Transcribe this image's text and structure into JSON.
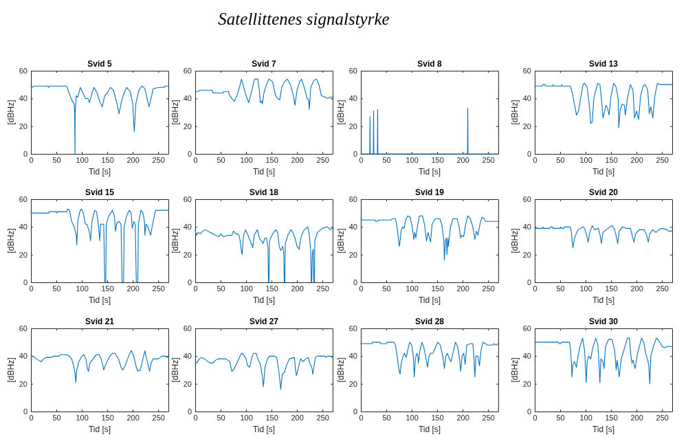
{
  "chart_data": [
    {
      "type": "other",
      "title": "Satellittenes signalstyrke"
    },
    {
      "type": "line",
      "title": "Svid 5",
      "xlabel": "Tid [s]",
      "ylabel": "[dBHz]",
      "color": "#0072bd",
      "xlim": [
        0,
        270
      ],
      "xticks": [
        0,
        50,
        100,
        150,
        200,
        250
      ],
      "ylim": [
        0,
        60
      ],
      "yticks": [
        0,
        20,
        40,
        60
      ],
      "x": [
        0,
        3,
        6,
        33,
        35,
        37,
        70,
        75,
        80,
        85,
        86,
        86.5,
        87,
        89,
        92,
        97,
        102,
        107,
        112,
        115,
        120,
        124,
        130,
        135,
        140,
        145,
        150,
        156,
        162,
        168,
        173,
        178,
        183,
        188,
        195,
        200,
        203,
        206,
        212,
        218,
        224,
        228,
        232,
        236,
        240,
        250,
        262,
        263,
        270
      ],
      "values": [
        49,
        48,
        49,
        49,
        48,
        49,
        49,
        44,
        39,
        36,
        30,
        0,
        30,
        42,
        41,
        48,
        44,
        40,
        40,
        37,
        44,
        48,
        44,
        38,
        34,
        42,
        44,
        48,
        46,
        38,
        29,
        38,
        44,
        48,
        45,
        36,
        16,
        36,
        46,
        49,
        47,
        40,
        34,
        40,
        47,
        48,
        48,
        49,
        49
      ]
    },
    {
      "type": "line",
      "title": "Svid 7",
      "xlabel": "Tid [s]",
      "ylabel": "[dBHz]",
      "color": "#0072bd",
      "xlim": [
        0,
        270
      ],
      "xticks": [
        0,
        50,
        100,
        150,
        200,
        250
      ],
      "ylim": [
        0,
        60
      ],
      "yticks": [
        0,
        20,
        40,
        60
      ],
      "x": [
        0,
        5,
        10,
        33,
        35,
        55,
        56,
        65,
        68,
        72,
        77,
        82,
        87,
        91,
        94,
        100,
        105,
        110,
        115,
        117,
        123,
        126,
        128,
        131,
        132,
        135,
        140,
        145,
        152,
        158,
        162,
        166,
        170,
        175,
        181,
        187,
        193,
        196,
        200,
        205,
        209,
        214,
        220,
        223,
        224,
        227,
        233,
        238,
        243,
        248,
        255,
        260,
        265,
        270
      ],
      "values": [
        45,
        45,
        46,
        46,
        44,
        44,
        45,
        45,
        42,
        40,
        38,
        42,
        48,
        54,
        50,
        42,
        37,
        44,
        52,
        54,
        54,
        46,
        37,
        38,
        36,
        44,
        50,
        54,
        52,
        42,
        40,
        39,
        48,
        52,
        54,
        50,
        42,
        35,
        46,
        52,
        54,
        48,
        40,
        39,
        32,
        48,
        53,
        54,
        50,
        42,
        41,
        40,
        41,
        41
      ]
    },
    {
      "type": "line",
      "title": "Svid 8",
      "xlabel": "Tid [s]",
      "ylabel": "[dBHz]",
      "color": "#0072bd",
      "xlim": [
        0,
        270
      ],
      "xticks": [
        0,
        50,
        100,
        150,
        200,
        250
      ],
      "ylim": [
        0,
        60
      ],
      "yticks": [
        0,
        20,
        40,
        60
      ],
      "x": [
        0,
        17.5,
        18,
        18.5,
        24.5,
        25,
        25.5,
        32.5,
        33,
        33.5,
        209.5,
        210,
        210.5,
        270
      ],
      "values": [
        0,
        0,
        27,
        0,
        0,
        31,
        0,
        0,
        32,
        0,
        0,
        33,
        0,
        0
      ]
    },
    {
      "type": "line",
      "title": "Svid 13",
      "xlabel": "Tid [s]",
      "ylabel": "[dBHz]",
      "color": "#0072bd",
      "xlim": [
        0,
        270
      ],
      "xticks": [
        0,
        50,
        100,
        150,
        200,
        250
      ],
      "ylim": [
        0,
        60
      ],
      "yticks": [
        0,
        20,
        40,
        60
      ],
      "x": [
        0,
        15,
        16,
        20,
        21,
        35,
        36,
        37,
        52,
        53,
        54,
        70,
        74,
        78,
        82,
        86,
        90,
        95,
        98,
        103,
        107,
        110,
        113,
        116,
        120,
        124,
        128,
        131,
        134,
        137,
        140,
        143,
        146,
        150,
        155,
        160,
        164,
        165,
        168,
        172,
        176,
        178,
        182,
        188,
        193,
        196,
        200,
        204,
        208,
        213,
        217,
        222,
        225,
        228,
        232,
        236,
        241,
        245,
        270
      ],
      "values": [
        49,
        49,
        50,
        50,
        49,
        49,
        50,
        49,
        49,
        50,
        49,
        49,
        44,
        36,
        28,
        31,
        40,
        50,
        51,
        48,
        36,
        22,
        23,
        40,
        46,
        51,
        50,
        40,
        26,
        30,
        35,
        33,
        28,
        42,
        51,
        48,
        40,
        19,
        32,
        36,
        35,
        28,
        40,
        50,
        46,
        26,
        31,
        25,
        42,
        49,
        50,
        46,
        29,
        34,
        26,
        42,
        51,
        50,
        50
      ]
    },
    {
      "type": "line",
      "title": "Svid 15",
      "xlabel": "Tid [s]",
      "ylabel": "[dBHz]",
      "color": "#0072bd",
      "xlim": [
        0,
        270
      ],
      "xticks": [
        0,
        50,
        100,
        150,
        200,
        250
      ],
      "ylim": [
        0,
        60
      ],
      "yticks": [
        0,
        20,
        40,
        60
      ],
      "x": [
        0,
        1,
        35,
        36,
        50,
        51,
        52,
        70,
        73,
        76,
        80,
        85,
        89,
        90,
        92,
        96,
        99,
        103,
        107,
        110,
        115,
        117,
        120,
        125,
        129,
        133,
        135,
        137,
        143,
        145,
        147,
        148,
        153,
        160,
        164,
        166,
        169,
        173,
        177,
        179,
        182,
        183,
        188,
        193,
        197,
        199,
        202,
        205,
        207,
        210,
        211,
        216,
        220,
        223,
        224,
        226,
        230,
        235,
        240,
        245,
        270
      ],
      "values": [
        51,
        50,
        50,
        51,
        51,
        50,
        51,
        51,
        53,
        52,
        44,
        40,
        34,
        27,
        44,
        51,
        53,
        50,
        42,
        42,
        36,
        30,
        44,
        52,
        51,
        40,
        30,
        42,
        42,
        0,
        0,
        42,
        48,
        52,
        48,
        37,
        43,
        44,
        42,
        0,
        0,
        40,
        48,
        52,
        50,
        39,
        44,
        42,
        0,
        0,
        42,
        52,
        50,
        44,
        34,
        42,
        40,
        34,
        44,
        52,
        52
      ]
    },
    {
      "type": "line",
      "title": "Svid 18",
      "xlabel": "Tid [s]",
      "ylabel": "[dBHz]",
      "color": "#0072bd",
      "xlim": [
        0,
        270
      ],
      "xticks": [
        0,
        50,
        100,
        150,
        200,
        250
      ],
      "ylim": [
        0,
        60
      ],
      "yticks": [
        0,
        20,
        40,
        60
      ],
      "x": [
        0,
        2,
        6,
        10,
        15,
        20,
        25,
        30,
        40,
        47,
        50,
        55,
        65,
        72,
        75,
        80,
        84,
        87,
        91,
        92,
        95,
        99,
        105,
        110,
        113,
        116,
        122,
        126,
        130,
        133,
        137,
        140,
        143,
        144,
        145,
        146,
        152,
        158,
        162,
        165,
        168,
        172,
        174,
        175,
        176,
        177,
        182,
        188,
        192,
        196,
        200,
        204,
        208,
        214,
        221,
        224,
        227,
        228,
        229,
        230,
        232,
        233,
        234,
        235,
        240,
        250,
        260,
        265,
        270
      ],
      "values": [
        38,
        34,
        36,
        35,
        37,
        38,
        37,
        36,
        34,
        33,
        35,
        33,
        34,
        34,
        37,
        35,
        35,
        33,
        22,
        20,
        34,
        38,
        33,
        28,
        25,
        34,
        38,
        32,
        30,
        28,
        32,
        32,
        25,
        0,
        0,
        30,
        35,
        38,
        36,
        26,
        23,
        26,
        21,
        0,
        0,
        28,
        34,
        38,
        36,
        32,
        26,
        24,
        33,
        38,
        40,
        35,
        22,
        0,
        0,
        20,
        24,
        0,
        0,
        30,
        36,
        39,
        40,
        38,
        39
      ]
    },
    {
      "type": "line",
      "title": "Svid 19",
      "xlabel": "Tid [s]",
      "ylabel": "[dBHz]",
      "color": "#0072bd",
      "xlim": [
        0,
        270
      ],
      "xticks": [
        0,
        50,
        100,
        150,
        200,
        250
      ],
      "ylim": [
        0,
        60
      ],
      "yticks": [
        0,
        20,
        40,
        60
      ],
      "x": [
        0,
        3,
        28,
        29,
        33,
        34,
        60,
        62,
        68,
        71,
        75,
        76,
        79,
        82,
        85,
        88,
        92,
        97,
        101,
        104,
        106,
        108,
        111,
        115,
        121,
        125,
        129,
        132,
        137,
        140,
        146,
        155,
        159,
        163,
        164,
        166,
        168,
        169,
        171,
        172,
        176,
        181,
        189,
        193,
        196,
        198,
        202,
        206,
        210,
        215,
        220,
        224,
        227,
        230,
        234,
        238,
        242,
        245,
        270
      ],
      "values": [
        46,
        45,
        45,
        44,
        44,
        45,
        45,
        46,
        46,
        40,
        28,
        26,
        37,
        40,
        39,
        45,
        48,
        47,
        40,
        31,
        36,
        32,
        40,
        48,
        48,
        42,
        30,
        36,
        29,
        42,
        46,
        46,
        42,
        30,
        16,
        30,
        32,
        20,
        32,
        26,
        40,
        46,
        46,
        40,
        32,
        34,
        33,
        42,
        48,
        46,
        40,
        31,
        37,
        34,
        42,
        47,
        46,
        44,
        44
      ]
    },
    {
      "type": "line",
      "title": "Svid 20",
      "xlabel": "Tid [s]",
      "ylabel": "[dBHz]",
      "color": "#0072bd",
      "xlim": [
        0,
        270
      ],
      "xticks": [
        0,
        50,
        100,
        150,
        200,
        250
      ],
      "ylim": [
        0,
        60
      ],
      "yticks": [
        0,
        20,
        40,
        60
      ],
      "x": [
        0,
        2,
        15,
        16,
        17,
        30,
        31,
        35,
        36,
        50,
        51,
        53,
        57,
        58,
        70,
        72,
        74,
        75,
        78,
        85,
        95,
        98,
        102,
        105,
        108,
        113,
        117,
        125,
        129,
        131,
        134,
        140,
        152,
        157,
        161,
        163,
        166,
        172,
        180,
        188,
        192,
        195,
        198,
        205,
        215,
        220,
        223,
        226,
        232,
        238,
        244,
        250,
        260,
        263,
        270
      ],
      "values": [
        40,
        39,
        39,
        40,
        39,
        39,
        40,
        40,
        39,
        39,
        40,
        39,
        39,
        40,
        40,
        36,
        28,
        25,
        32,
        38,
        40,
        39,
        34,
        29,
        36,
        41,
        38,
        39,
        33,
        28,
        36,
        38,
        41,
        38,
        32,
        28,
        37,
        40,
        39,
        39,
        33,
        29,
        35,
        38,
        38,
        34,
        29,
        35,
        38,
        36,
        38,
        39,
        38,
        37,
        37
      ]
    },
    {
      "type": "line",
      "title": "Svid 21",
      "xlabel": "Tid [s]",
      "ylabel": "[dBHz]",
      "color": "#0072bd",
      "xlim": [
        0,
        270
      ],
      "xticks": [
        0,
        50,
        100,
        150,
        200,
        250
      ],
      "ylim": [
        0,
        60
      ],
      "yticks": [
        0,
        20,
        40,
        60
      ],
      "x": [
        0,
        1,
        5,
        10,
        15,
        20,
        25,
        30,
        40,
        45,
        55,
        58,
        70,
        75,
        80,
        84,
        87,
        88,
        90,
        94,
        100,
        104,
        108,
        111,
        113,
        116,
        122,
        128,
        134,
        138,
        142,
        143,
        148,
        155,
        160,
        165,
        172,
        177,
        180,
        185,
        192,
        197,
        202,
        207,
        210,
        215,
        220,
        224,
        226,
        230,
        233,
        236,
        240,
        250,
        258,
        265,
        267,
        270
      ],
      "values": [
        38,
        40,
        40,
        38,
        37,
        36,
        38,
        39,
        39,
        40,
        40,
        41,
        41,
        40,
        38,
        33,
        27,
        21,
        30,
        36,
        40,
        41,
        38,
        31,
        29,
        35,
        38,
        41,
        41,
        38,
        32,
        30,
        35,
        40,
        42,
        42,
        38,
        32,
        30,
        33,
        40,
        44,
        40,
        32,
        29,
        30,
        38,
        44,
        40,
        34,
        29,
        35,
        38,
        38,
        40,
        40,
        39,
        40
      ]
    },
    {
      "type": "line",
      "title": "Svid 27",
      "xlabel": "Tid [s]",
      "ylabel": "[dBHz]",
      "color": "#0072bd",
      "xlim": [
        0,
        270
      ],
      "xticks": [
        0,
        50,
        100,
        150,
        200,
        250
      ],
      "ylim": [
        0,
        60
      ],
      "yticks": [
        0,
        20,
        40,
        60
      ],
      "x": [
        0,
        3,
        8,
        12,
        18,
        25,
        30,
        35,
        40,
        45,
        60,
        68,
        72,
        75,
        82,
        88,
        91,
        95,
        100,
        103,
        107,
        112,
        115,
        120,
        123,
        128,
        132,
        134,
        137,
        142,
        146,
        155,
        160,
        164,
        167,
        168,
        171,
        175,
        180,
        185,
        195,
        197,
        199,
        203,
        207,
        212,
        217,
        222,
        226,
        229,
        231,
        233,
        236,
        240,
        255,
        256,
        260,
        265,
        270
      ],
      "values": [
        35,
        35,
        38,
        39,
        38,
        36,
        35,
        35,
        37,
        38,
        38,
        36,
        29,
        30,
        35,
        40,
        42,
        41,
        38,
        33,
        32,
        40,
        42,
        42,
        38,
        34,
        25,
        18,
        32,
        38,
        40,
        40,
        39,
        30,
        20,
        16,
        27,
        28,
        34,
        38,
        39,
        30,
        26,
        32,
        38,
        36,
        38,
        39,
        34,
        32,
        27,
        32,
        39,
        40,
        40,
        39,
        40,
        40,
        39
      ]
    },
    {
      "type": "line",
      "title": "Svid 28",
      "xlabel": "Tid [s]",
      "ylabel": "[dBHz]",
      "color": "#0072bd",
      "xlim": [
        0,
        270
      ],
      "xticks": [
        0,
        50,
        100,
        150,
        200,
        250
      ],
      "ylim": [
        0,
        60
      ],
      "yticks": [
        0,
        20,
        40,
        60
      ],
      "x": [
        0,
        22,
        23,
        38,
        39,
        50,
        52,
        65,
        68,
        72,
        75,
        77,
        80,
        83,
        86,
        89,
        92,
        96,
        100,
        103,
        105,
        107,
        110,
        112,
        113,
        116,
        120,
        124,
        128,
        131,
        134,
        137,
        142,
        146,
        151,
        156,
        161,
        164,
        167,
        170,
        174,
        177,
        181,
        186,
        190,
        194,
        196,
        199,
        202,
        205,
        208,
        215,
        220,
        222,
        224,
        226,
        230,
        233,
        236,
        240,
        245,
        248,
        260,
        262,
        265,
        270
      ],
      "values": [
        49,
        49,
        50,
        50,
        49,
        49,
        50,
        50,
        48,
        38,
        30,
        27,
        36,
        40,
        42,
        39,
        44,
        50,
        48,
        40,
        25,
        38,
        42,
        40,
        35,
        44,
        50,
        46,
        38,
        32,
        40,
        42,
        42,
        46,
        50,
        48,
        40,
        31,
        40,
        42,
        38,
        36,
        42,
        50,
        47,
        38,
        29,
        40,
        42,
        34,
        48,
        49,
        49,
        40,
        25,
        40,
        40,
        33,
        44,
        50,
        49,
        48,
        48,
        49,
        48,
        49
      ]
    },
    {
      "type": "line",
      "title": "Svid 30",
      "xlabel": "Tid [s]",
      "ylabel": "[dBHz]",
      "color": "#0072bd",
      "xlim": [
        0,
        270
      ],
      "xticks": [
        0,
        50,
        100,
        150,
        200,
        250
      ],
      "ylim": [
        0,
        60
      ],
      "yticks": [
        0,
        20,
        40,
        60
      ],
      "x": [
        0,
        47,
        48,
        51,
        52,
        68,
        70,
        72,
        73,
        75,
        78,
        82,
        85,
        89,
        94,
        98,
        100,
        101,
        103,
        106,
        110,
        114,
        120,
        124,
        127,
        128,
        130,
        134,
        136,
        139,
        145,
        152,
        157,
        160,
        162,
        166,
        170,
        175,
        182,
        186,
        189,
        191,
        193,
        197,
        202,
        210,
        214,
        218,
        222,
        224,
        226,
        228,
        234,
        239,
        244,
        250,
        255,
        260,
        270
      ],
      "values": [
        50,
        50,
        49,
        49,
        50,
        50,
        46,
        36,
        25,
        34,
        36,
        32,
        40,
        47,
        53,
        44,
        30,
        21,
        36,
        40,
        38,
        46,
        53,
        48,
        30,
        21,
        38,
        36,
        31,
        47,
        52,
        52,
        44,
        30,
        37,
        25,
        38,
        44,
        53,
        53,
        40,
        35,
        37,
        31,
        42,
        53,
        50,
        42,
        37,
        33,
        20,
        40,
        48,
        53,
        51,
        47,
        46,
        47,
        47
      ]
    }
  ]
}
